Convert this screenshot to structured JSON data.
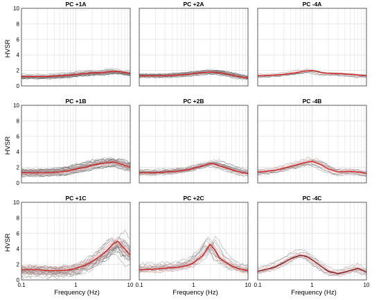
{
  "figure": {
    "ylabel": "HVSR",
    "xlabel": "Frequency (Hz)"
  },
  "chart_data": [
    {
      "type": "line",
      "title": "PC +1A",
      "xscale": "log",
      "xlim": [
        0.1,
        10
      ],
      "ylim": [
        0,
        10
      ],
      "xticks": [
        "0.1",
        "1",
        "10"
      ],
      "yticks": [
        "0",
        "2",
        "4",
        "6",
        "8",
        "10"
      ],
      "grid": true,
      "n_traces": 24,
      "spread": 0.35,
      "trace_color": "#555555",
      "mean_color": "#cc2222",
      "mean": {
        "x": [
          0.1,
          0.2,
          0.3,
          0.5,
          0.8,
          1,
          1.5,
          2,
          3,
          5,
          7,
          10
        ],
        "y": [
          1.2,
          1.2,
          1.2,
          1.3,
          1.4,
          1.5,
          1.6,
          1.7,
          1.7,
          1.9,
          1.8,
          1.6
        ]
      }
    },
    {
      "type": "line",
      "title": "PC +2A",
      "xscale": "log",
      "xlim": [
        0.1,
        10
      ],
      "ylim": [
        0,
        10
      ],
      "xticks": [
        "0.1",
        "1",
        "10"
      ],
      "yticks": [
        "0",
        "2",
        "4",
        "6",
        "8",
        "10"
      ],
      "grid": true,
      "n_traces": 22,
      "spread": 0.3,
      "trace_color": "#555555",
      "mean_color": "#cc2222",
      "mean": {
        "x": [
          0.1,
          0.2,
          0.3,
          0.5,
          0.8,
          1,
          1.5,
          2,
          3,
          5,
          7,
          10
        ],
        "y": [
          1.3,
          1.3,
          1.3,
          1.4,
          1.5,
          1.6,
          1.7,
          1.8,
          1.7,
          1.4,
          1.2,
          1.0
        ]
      }
    },
    {
      "type": "line",
      "title": "PC -4A",
      "xscale": "log",
      "xlim": [
        0.1,
        10
      ],
      "ylim": [
        0,
        10
      ],
      "xticks": [
        "0.1",
        "1",
        "10"
      ],
      "yticks": [
        "0",
        "2",
        "4",
        "6",
        "8",
        "10"
      ],
      "grid": true,
      "n_traces": 8,
      "spread": 0.3,
      "trace_color": "#555555",
      "mean_color": "#cc2222",
      "mean": {
        "x": [
          0.1,
          0.2,
          0.3,
          0.5,
          0.7,
          1,
          1.5,
          2,
          3,
          5,
          7,
          10
        ],
        "y": [
          1.3,
          1.4,
          1.5,
          1.7,
          1.9,
          2.0,
          1.7,
          1.6,
          1.6,
          1.5,
          1.4,
          1.3
        ]
      }
    },
    {
      "type": "line",
      "title": "PC +1B",
      "xscale": "log",
      "xlim": [
        0.1,
        10
      ],
      "ylim": [
        0,
        10
      ],
      "xticks": [
        "0.1",
        "1",
        "10"
      ],
      "yticks": [
        "0",
        "2",
        "4",
        "6",
        "8",
        "10"
      ],
      "grid": true,
      "n_traces": 28,
      "spread": 0.6,
      "trace_color": "#555555",
      "mean_color": "#cc2222",
      "mean": {
        "x": [
          0.1,
          0.2,
          0.3,
          0.5,
          0.8,
          1,
          1.5,
          2,
          3,
          5,
          7,
          10
        ],
        "y": [
          1.3,
          1.3,
          1.3,
          1.4,
          1.6,
          1.8,
          2.0,
          2.3,
          2.5,
          2.7,
          2.4,
          2.0
        ]
      }
    },
    {
      "type": "line",
      "title": "PC +2B",
      "xscale": "log",
      "xlim": [
        0.1,
        10
      ],
      "ylim": [
        0,
        10
      ],
      "xticks": [
        "0.1",
        "1",
        "10"
      ],
      "yticks": [
        "0",
        "2",
        "4",
        "6",
        "8",
        "10"
      ],
      "grid": true,
      "n_traces": 18,
      "spread": 0.45,
      "trace_color": "#555555",
      "mean_color": "#cc2222",
      "mean": {
        "x": [
          0.1,
          0.2,
          0.3,
          0.5,
          0.8,
          1,
          1.5,
          2,
          2.5,
          3,
          5,
          7,
          10
        ],
        "y": [
          1.3,
          1.3,
          1.4,
          1.5,
          1.7,
          1.9,
          2.2,
          2.5,
          2.4,
          2.2,
          1.7,
          1.4,
          1.2
        ]
      }
    },
    {
      "type": "line",
      "title": "PC -4B",
      "xscale": "log",
      "xlim": [
        0.1,
        10
      ],
      "ylim": [
        0,
        10
      ],
      "xticks": [
        "0.1",
        "1",
        "10"
      ],
      "yticks": [
        "0",
        "2",
        "4",
        "6",
        "8",
        "10"
      ],
      "grid": true,
      "n_traces": 10,
      "spread": 0.55,
      "trace_color": "#555555",
      "mean_color": "#cc2222",
      "mean": {
        "x": [
          0.1,
          0.2,
          0.3,
          0.5,
          0.7,
          1,
          1.5,
          2,
          3,
          5,
          7,
          10
        ],
        "y": [
          1.4,
          1.6,
          1.9,
          2.3,
          2.6,
          2.8,
          2.3,
          1.8,
          1.4,
          1.5,
          1.4,
          1.2
        ]
      }
    },
    {
      "type": "line",
      "title": "PC +1C",
      "xscale": "log",
      "xlim": [
        0.1,
        10
      ],
      "ylim": [
        0,
        10
      ],
      "xticks": [
        "0.1",
        "1",
        "10"
      ],
      "yticks": [
        "0",
        "2",
        "4",
        "6",
        "8",
        "10"
      ],
      "grid": true,
      "n_traces": 24,
      "spread": 1.0,
      "trace_color": "#555555",
      "mean_color": "#cc2222",
      "mean": {
        "x": [
          0.1,
          0.2,
          0.3,
          0.5,
          0.8,
          1,
          1.5,
          2,
          3,
          4,
          5,
          6,
          7,
          10
        ],
        "y": [
          1.3,
          1.3,
          1.2,
          1.2,
          1.3,
          1.5,
          1.9,
          2.4,
          3.2,
          4.0,
          4.7,
          5.0,
          4.4,
          3.2
        ]
      }
    },
    {
      "type": "line",
      "title": "PC +2C",
      "xscale": "log",
      "xlim": [
        0.1,
        10
      ],
      "ylim": [
        0,
        10
      ],
      "xticks": [
        "0.1",
        "1",
        "10"
      ],
      "yticks": [
        "0",
        "2",
        "4",
        "6",
        "8",
        "10"
      ],
      "grid": true,
      "n_traces": 14,
      "spread": 0.8,
      "trace_color": "#555555",
      "mean_color": "#cc2222",
      "mean": {
        "x": [
          0.1,
          0.2,
          0.3,
          0.5,
          0.8,
          1,
          1.5,
          1.8,
          2,
          2.5,
          3,
          5,
          7,
          10
        ],
        "y": [
          1.3,
          1.4,
          1.5,
          1.6,
          1.9,
          2.2,
          3.2,
          4.1,
          4.6,
          3.8,
          2.8,
          1.8,
          1.4,
          1.2
        ]
      }
    },
    {
      "type": "line",
      "title": "PC -4C",
      "xscale": "log",
      "xlim": [
        0.1,
        10
      ],
      "ylim": [
        0,
        10
      ],
      "xticks": [
        "0.1",
        "1",
        "10"
      ],
      "yticks": [
        "0",
        "2",
        "4",
        "6",
        "8",
        "10"
      ],
      "grid": true,
      "n_traces": 9,
      "spread": 0.6,
      "trace_color": "#555555",
      "mean_color": "#8b1a1a",
      "mean": {
        "x": [
          0.1,
          0.2,
          0.3,
          0.4,
          0.6,
          0.8,
          1,
          1.5,
          2,
          3,
          5,
          7,
          10
        ],
        "y": [
          1.1,
          1.6,
          2.2,
          2.7,
          3.2,
          3.0,
          2.6,
          1.7,
          1.1,
          0.8,
          1.2,
          1.5,
          1.0
        ]
      }
    }
  ]
}
